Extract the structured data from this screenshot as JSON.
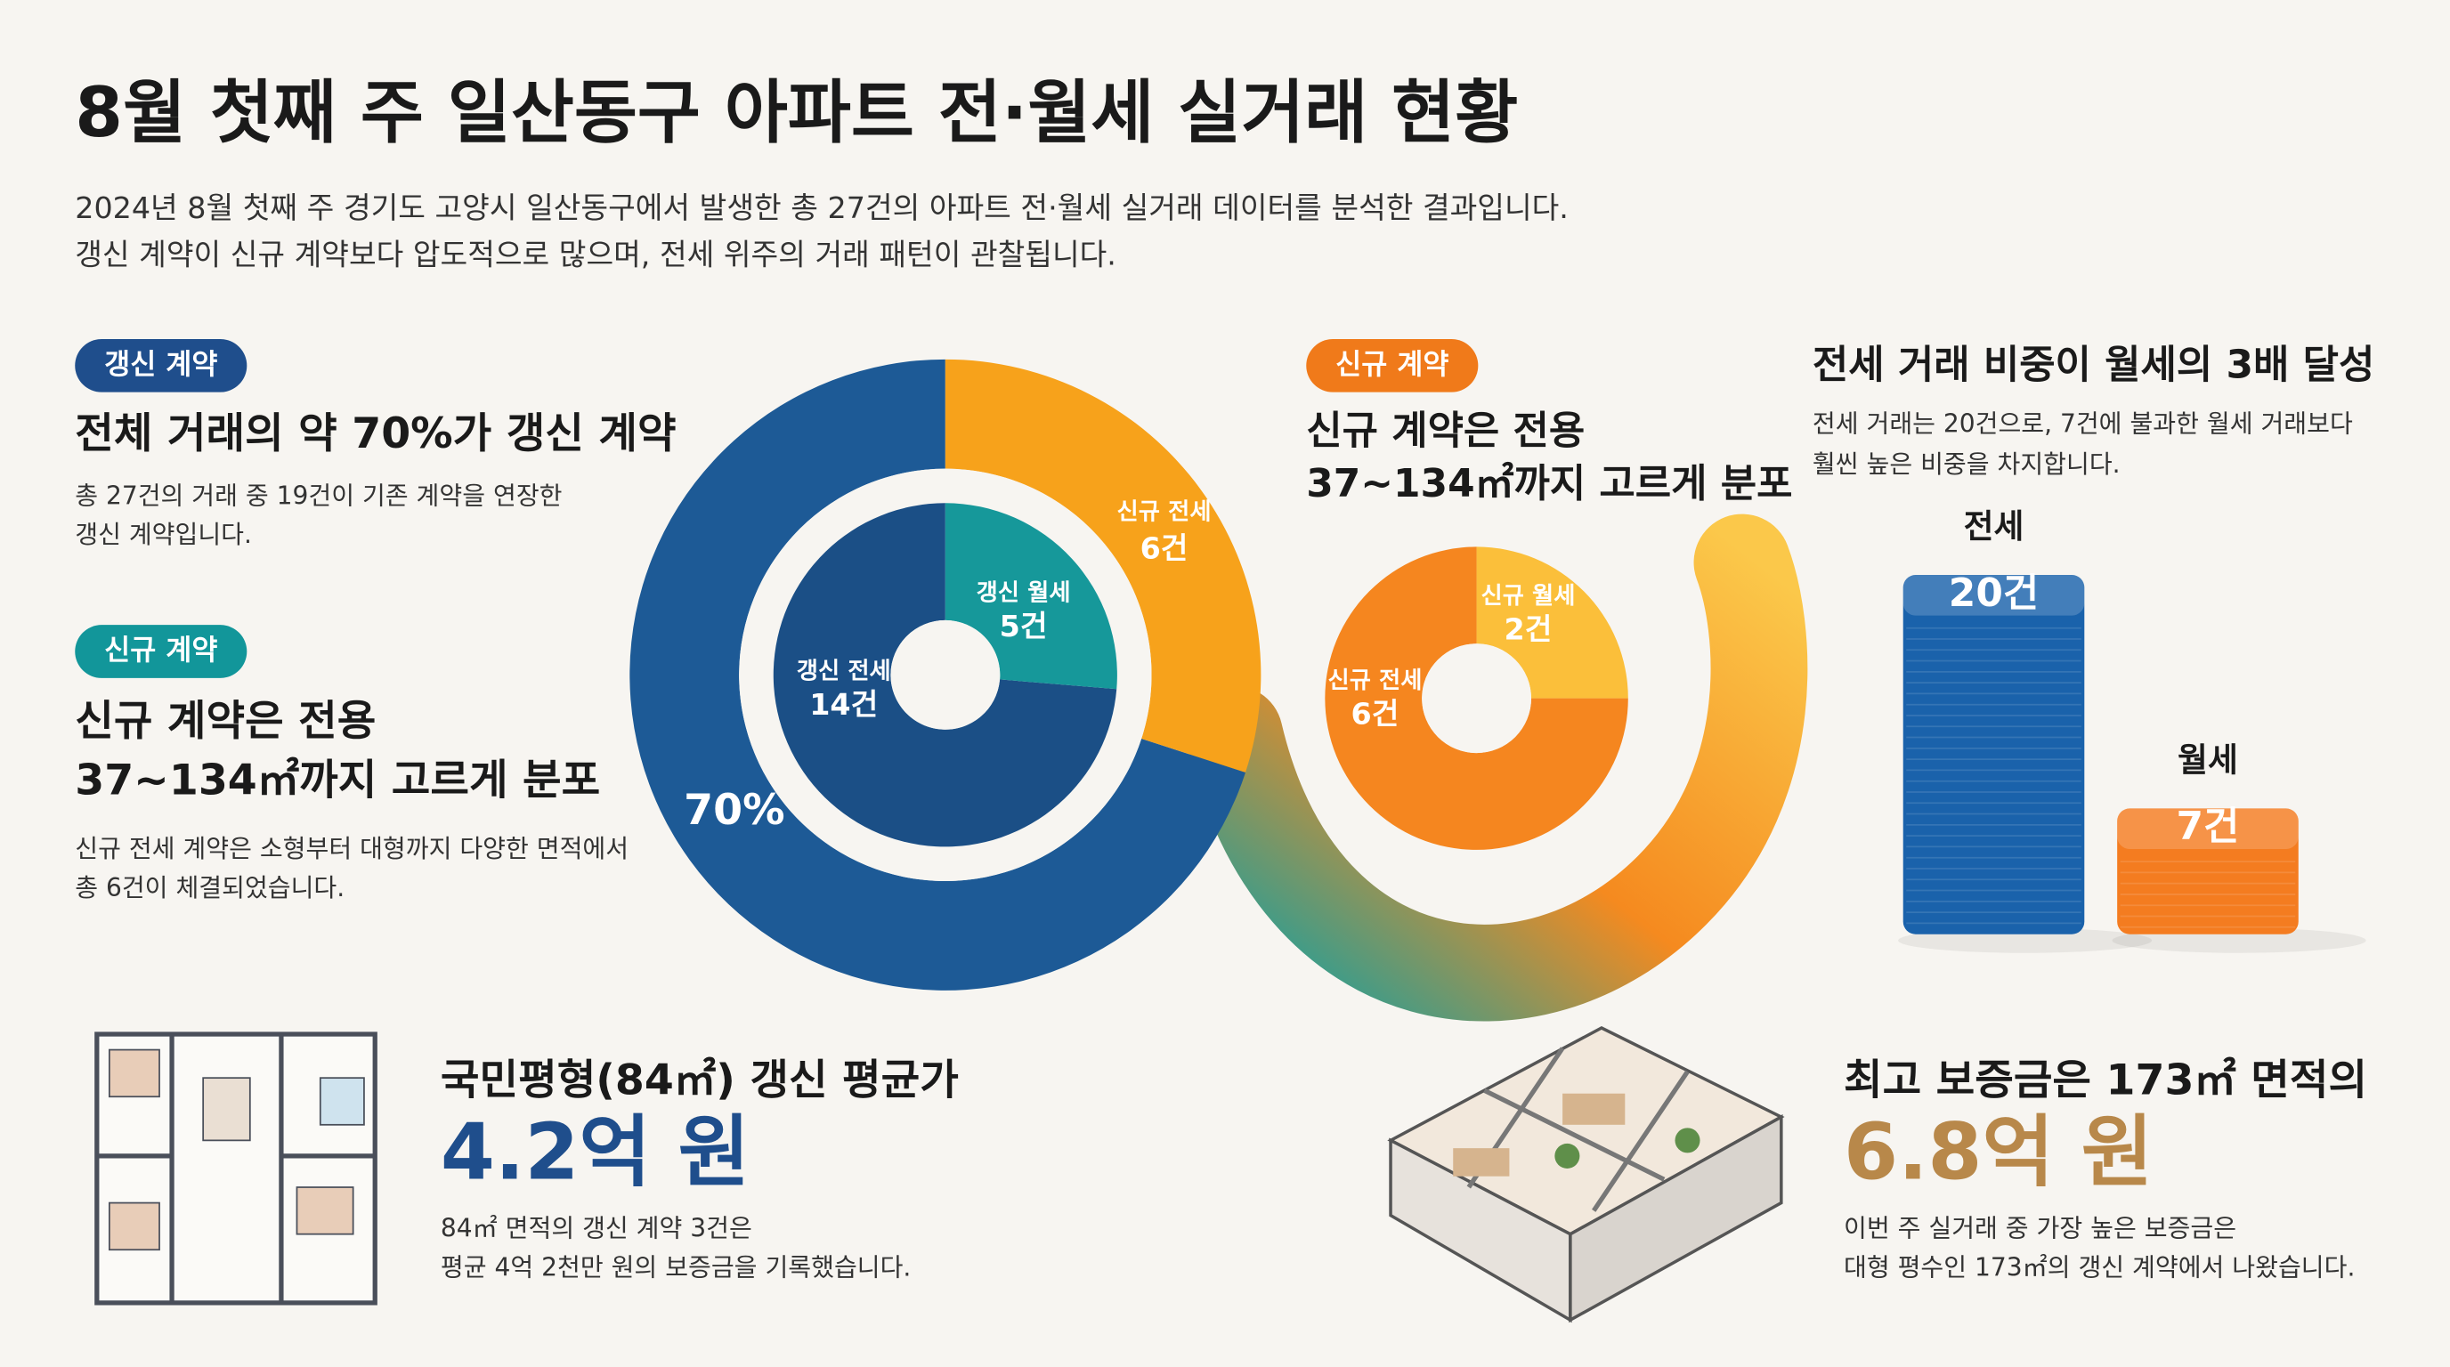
{
  "header": {
    "title": "8월 첫째 주 일산동구 아파트 전·월세 실거래 현황",
    "description": [
      "2024년 8월 첫째 주 경기도 고양시 일산동구에서 발생한 총 27건의 아파트 전·월세 실거래 데이터를 분석한 결과입니다.",
      "갱신 계약이 신규 계약보다 압도적으로 많으며, 전세 위주의 거래 패턴이 관찰됩니다."
    ]
  },
  "cards": [
    {
      "badge": "갱신 계약",
      "heading": [
        "전체 거래의 약 70%가 갱신 계약"
      ],
      "body": [
        "총 27건의 거래 중 19건이 기존 계약을 연장한",
        "갱신 계약입니다."
      ]
    },
    {
      "badge": "신규 계약",
      "heading": [
        "신규 계약은 전용",
        "37~134㎡까지 고르게 분포"
      ],
      "body": [
        "신규 전세 계약은 소형부터 대형까지 다양한 면적에서",
        "총 6건이 체결되었습니다."
      ]
    },
    {
      "badge": "신규 계약",
      "heading": [
        "신규 계약은 전용",
        "37~134㎡까지 고르게 분포"
      ]
    }
  ],
  "ratio_card": {
    "heading": "전세 거래 비중이 월세의 3배 달성",
    "body": [
      "전세 거래는 20건으로, 7건에 불과한 월세 거래보다",
      "훨씬 높은 비중을 차지합니다."
    ]
  },
  "bottom": [
    {
      "heading": "국민평형(84㎡) 갱신 평균가",
      "value": "4.2억 원",
      "body": [
        "84㎡ 면적의 갱신 계약 3건은",
        "평균 4억 2천만 원의 보증금을 기록했습니다."
      ]
    },
    {
      "heading": "최고 보증금은 173㎡ 면적의",
      "value": "6.8억 원",
      "body": [
        "이번 주 실거래 중 가장 높은 보증금은",
        "대형 평수인 173㎡의 갱신 계약에서 나왔습니다."
      ]
    }
  ],
  "chart_data": [
    {
      "type": "donut",
      "values": [
        70,
        30
      ],
      "value_labels": [
        "70%",
        null
      ],
      "colors": [
        "#1d5a96",
        "#f7a21b"
      ],
      "annotation": [
        "신규 전세",
        "6건"
      ]
    },
    {
      "type": "donut",
      "categories": [
        "갱신 전세",
        "갱신 월세"
      ],
      "values": [
        14,
        5
      ],
      "value_labels": [
        "14건",
        "5건"
      ],
      "colors": [
        "#1b4f86",
        "#16989a"
      ]
    },
    {
      "type": "donut",
      "categories": [
        "신규 월세",
        "신규 전세"
      ],
      "values": [
        2,
        6
      ],
      "value_labels": [
        "2건",
        "6건"
      ],
      "colors": [
        "#fbbf3a",
        "#f5861f"
      ]
    },
    {
      "type": "bar3d",
      "categories": [
        "전세",
        "월세"
      ],
      "values": [
        20,
        7
      ],
      "value_labels": [
        "20건",
        "7건"
      ],
      "colors": [
        "#1a62ab",
        "#f47c20"
      ]
    }
  ]
}
